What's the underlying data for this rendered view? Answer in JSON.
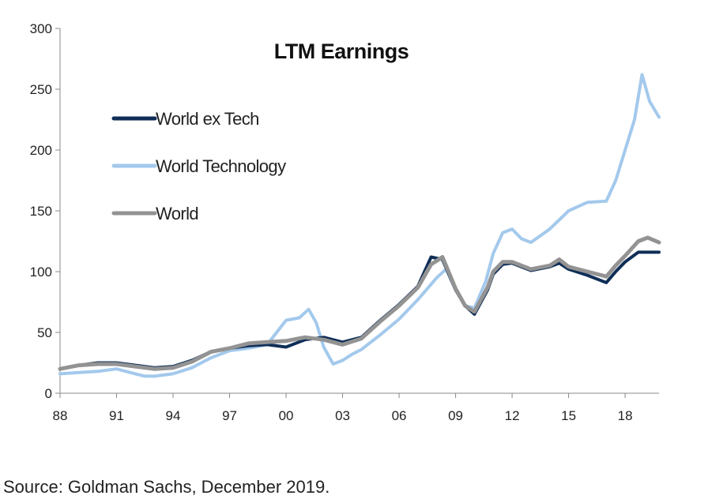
{
  "chart_data": {
    "type": "line",
    "title": "LTM Earnings",
    "xlabel": "",
    "ylabel": "",
    "xlim": [
      1988,
      2019.8
    ],
    "ylim": [
      0,
      300
    ],
    "y_ticks": [
      0,
      50,
      100,
      150,
      200,
      250,
      300
    ],
    "x_ticks": [
      {
        "value": 1988,
        "label": "88"
      },
      {
        "value": 1991,
        "label": "91"
      },
      {
        "value": 1994,
        "label": "94"
      },
      {
        "value": 1997,
        "label": "97"
      },
      {
        "value": 2000,
        "label": "00"
      },
      {
        "value": 2003,
        "label": "03"
      },
      {
        "value": 2006,
        "label": "06"
      },
      {
        "value": 2009,
        "label": "09"
      },
      {
        "value": 2012,
        "label": "12"
      },
      {
        "value": 2015,
        "label": "15"
      },
      {
        "value": 2018,
        "label": "18"
      }
    ],
    "grid": false,
    "legend_position": "top-left",
    "series": [
      {
        "name": "World Technology",
        "color": "#a3c9ec",
        "points": [
          [
            1988,
            16
          ],
          [
            1989,
            17
          ],
          [
            1990,
            18
          ],
          [
            1991,
            20
          ],
          [
            1992,
            16
          ],
          [
            1992.5,
            14
          ],
          [
            1993,
            14
          ],
          [
            1994,
            16
          ],
          [
            1995,
            21
          ],
          [
            1996,
            29
          ],
          [
            1997,
            35
          ],
          [
            1998,
            37
          ],
          [
            1999,
            40
          ],
          [
            1999.6,
            52
          ],
          [
            2000,
            60
          ],
          [
            2000.7,
            62
          ],
          [
            2001.2,
            69
          ],
          [
            2001.6,
            58
          ],
          [
            2002,
            38
          ],
          [
            2002.5,
            24
          ],
          [
            2003,
            27
          ],
          [
            2003.5,
            32
          ],
          [
            2004,
            36
          ],
          [
            2005,
            48
          ],
          [
            2006,
            61
          ],
          [
            2007,
            77
          ],
          [
            2008,
            95
          ],
          [
            2008.5,
            102
          ],
          [
            2009,
            85
          ],
          [
            2009.5,
            72
          ],
          [
            2010,
            70
          ],
          [
            2010.6,
            92
          ],
          [
            2011,
            115
          ],
          [
            2011.5,
            132
          ],
          [
            2012,
            135
          ],
          [
            2012.5,
            127
          ],
          [
            2013,
            124
          ],
          [
            2014,
            135
          ],
          [
            2015,
            150
          ],
          [
            2016,
            157
          ],
          [
            2017,
            158
          ],
          [
            2017.5,
            175
          ],
          [
            2018,
            200
          ],
          [
            2018.5,
            225
          ],
          [
            2018.9,
            262
          ],
          [
            2019.3,
            240
          ],
          [
            2019.8,
            227
          ]
        ]
      },
      {
        "name": "World ex Tech",
        "color": "#0f2e57",
        "points": [
          [
            1988,
            20
          ],
          [
            1989,
            23
          ],
          [
            1990,
            25
          ],
          [
            1991,
            25
          ],
          [
            1992,
            23
          ],
          [
            1993,
            21
          ],
          [
            1994,
            22
          ],
          [
            1995,
            27
          ],
          [
            1996,
            34
          ],
          [
            1997,
            37
          ],
          [
            1998,
            39
          ],
          [
            1999,
            40
          ],
          [
            2000,
            38
          ],
          [
            2001,
            44
          ],
          [
            2002,
            46
          ],
          [
            2003,
            42
          ],
          [
            2004,
            46
          ],
          [
            2005,
            60
          ],
          [
            2006,
            73
          ],
          [
            2007,
            88
          ],
          [
            2007.7,
            112
          ],
          [
            2008.3,
            110
          ],
          [
            2009,
            85
          ],
          [
            2009.5,
            72
          ],
          [
            2010,
            65
          ],
          [
            2010.7,
            85
          ],
          [
            2011,
            98
          ],
          [
            2011.5,
            106
          ],
          [
            2012,
            107
          ],
          [
            2013,
            101
          ],
          [
            2014,
            104
          ],
          [
            2014.5,
            107
          ],
          [
            2015,
            102
          ],
          [
            2016,
            97
          ],
          [
            2017,
            91
          ],
          [
            2017.5,
            100
          ],
          [
            2018,
            108
          ],
          [
            2018.7,
            116
          ],
          [
            2019.3,
            116
          ],
          [
            2019.8,
            116
          ]
        ]
      },
      {
        "name": "World",
        "color": "#939393",
        "points": [
          [
            1988,
            20
          ],
          [
            1989,
            23
          ],
          [
            1990,
            24
          ],
          [
            1991,
            24
          ],
          [
            1992,
            22
          ],
          [
            1993,
            20
          ],
          [
            1994,
            21
          ],
          [
            1995,
            26
          ],
          [
            1996,
            34
          ],
          [
            1997,
            37
          ],
          [
            1998,
            41
          ],
          [
            1999,
            42
          ],
          [
            2000,
            43
          ],
          [
            2001,
            46
          ],
          [
            2002,
            44
          ],
          [
            2003,
            40
          ],
          [
            2004,
            45
          ],
          [
            2005,
            59
          ],
          [
            2006,
            72
          ],
          [
            2007,
            87
          ],
          [
            2007.7,
            106
          ],
          [
            2008.3,
            112
          ],
          [
            2009,
            86
          ],
          [
            2009.5,
            72
          ],
          [
            2010,
            67
          ],
          [
            2010.7,
            87
          ],
          [
            2011,
            100
          ],
          [
            2011.5,
            108
          ],
          [
            2012,
            108
          ],
          [
            2013,
            102
          ],
          [
            2014,
            105
          ],
          [
            2014.5,
            110
          ],
          [
            2015,
            104
          ],
          [
            2016,
            100
          ],
          [
            2017,
            96
          ],
          [
            2017.5,
            105
          ],
          [
            2018,
            113
          ],
          [
            2018.7,
            125
          ],
          [
            2019.2,
            128
          ],
          [
            2019.8,
            124
          ]
        ]
      }
    ]
  },
  "source_text": "Source: Goldman Sachs, December 2019."
}
